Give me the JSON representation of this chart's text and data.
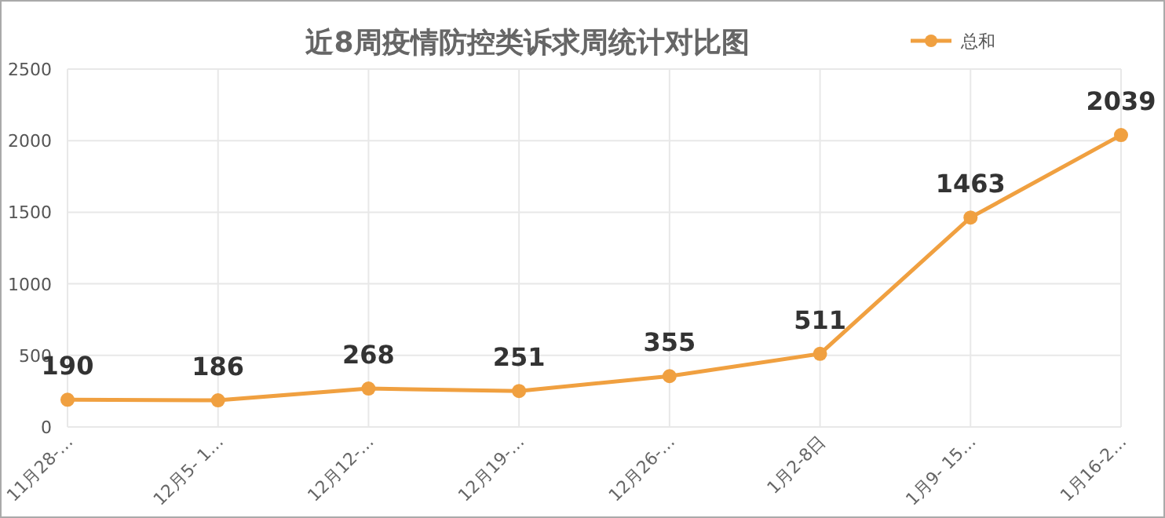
{
  "chart_data": {
    "type": "line",
    "title": "近8周疫情防控类诉求周统计对比图",
    "categories": [
      "11月28-…",
      "12月5- 1…",
      "12月12-…",
      "12月19-…",
      "12月26-…",
      "1月2-8日",
      "1月9- 15…",
      "1月16-2…"
    ],
    "series": [
      {
        "name": "总和",
        "color": "#f0a040",
        "values": [
          190,
          186,
          268,
          251,
          355,
          511,
          1463,
          2039
        ]
      }
    ],
    "ylim": [
      0,
      2500
    ],
    "yticks": [
      0,
      500,
      1000,
      1500,
      2000,
      2500
    ],
    "grid": true,
    "legend": "top right",
    "marker": "circle",
    "line_style": "solid",
    "data_labels": true
  }
}
